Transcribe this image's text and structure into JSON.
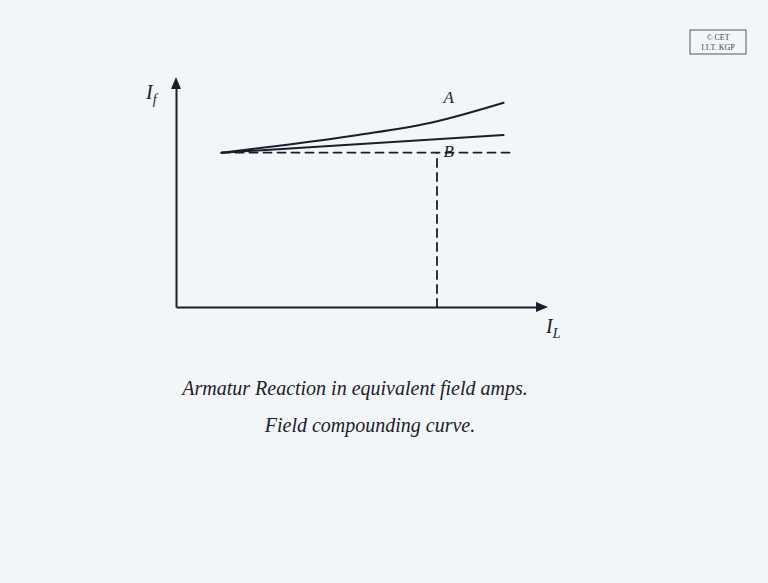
{
  "chart_data": {
    "type": "line",
    "x_label": {
      "text": "I",
      "subscript": "L"
    },
    "y_label": {
      "text": "I",
      "subscript": "f"
    },
    "xlim": [
      0,
      10
    ],
    "ylim": [
      0,
      10
    ],
    "tick_labels": false,
    "grid": false,
    "series": [
      {
        "x": [
          1.25,
          3,
          5,
          7,
          9
        ],
        "values": [
          6.95,
          7.3,
          7.75,
          8.3,
          9.2
        ],
        "color": "#1c1c2a",
        "line_style": "solid"
      },
      {
        "x": [
          1.25,
          9
        ],
        "values": [
          6.95,
          7.75
        ],
        "color": "#1c1c2a",
        "line_style": "solid"
      },
      {
        "x": [
          1.25,
          9.3
        ],
        "values": [
          6.95,
          6.95
        ],
        "color": "#1c1c2a",
        "line_style": "dashed"
      },
      {
        "x": [
          7.17,
          7.17
        ],
        "values": [
          0,
          6.95
        ],
        "color": "#1c1c2a",
        "line_style": "dashed"
      }
    ],
    "annotations": [
      {
        "text": "A",
        "x": 7.35,
        "y": 9.2
      },
      {
        "text": "B",
        "x": 7.35,
        "y": 6.75
      }
    ],
    "captions": [
      "Armatur Reaction in equivalent field amps.",
      "Field compounding curve."
    ],
    "logo": [
      "© CET",
      "I.I.T. KGP"
    ]
  }
}
